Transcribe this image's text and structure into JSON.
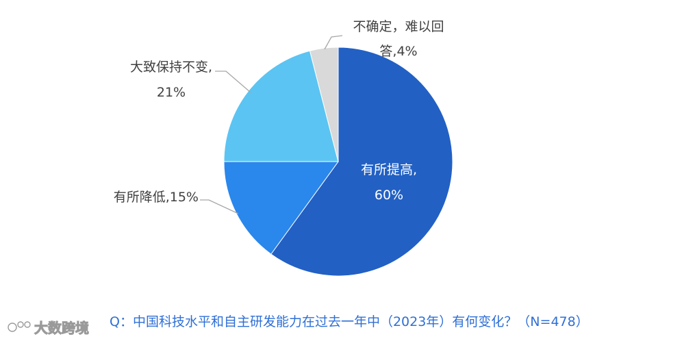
{
  "chart_data": {
    "type": "pie",
    "slices": [
      {
        "label": "有所提高",
        "value": 60,
        "value_text": "60%",
        "color": "#2260c4"
      },
      {
        "label": "有所降低",
        "value": 15,
        "value_text": "15%",
        "color": "#2a87ec"
      },
      {
        "label": "大致保持不变",
        "value": 21,
        "value_text": "21%",
        "color": "#5bc4f2"
      },
      {
        "label": "不确定，难以回答",
        "value": 4,
        "value_text": "4%",
        "color": "#d9d9d9"
      }
    ],
    "labels": {
      "raise_line1": "有所提高,",
      "raise_line2": "60%",
      "lower": "有所降低,15%",
      "same_line1": "大致保持不变,",
      "same_line2": "21%",
      "unsure_line1": "不确定，难以回",
      "unsure_line2": "答,4%"
    },
    "question": "Q：中国科技水平和自主研发能力在过去一年中（2023年）有何变化？（N=478）"
  },
  "watermark": {
    "text": "大数跨境"
  }
}
